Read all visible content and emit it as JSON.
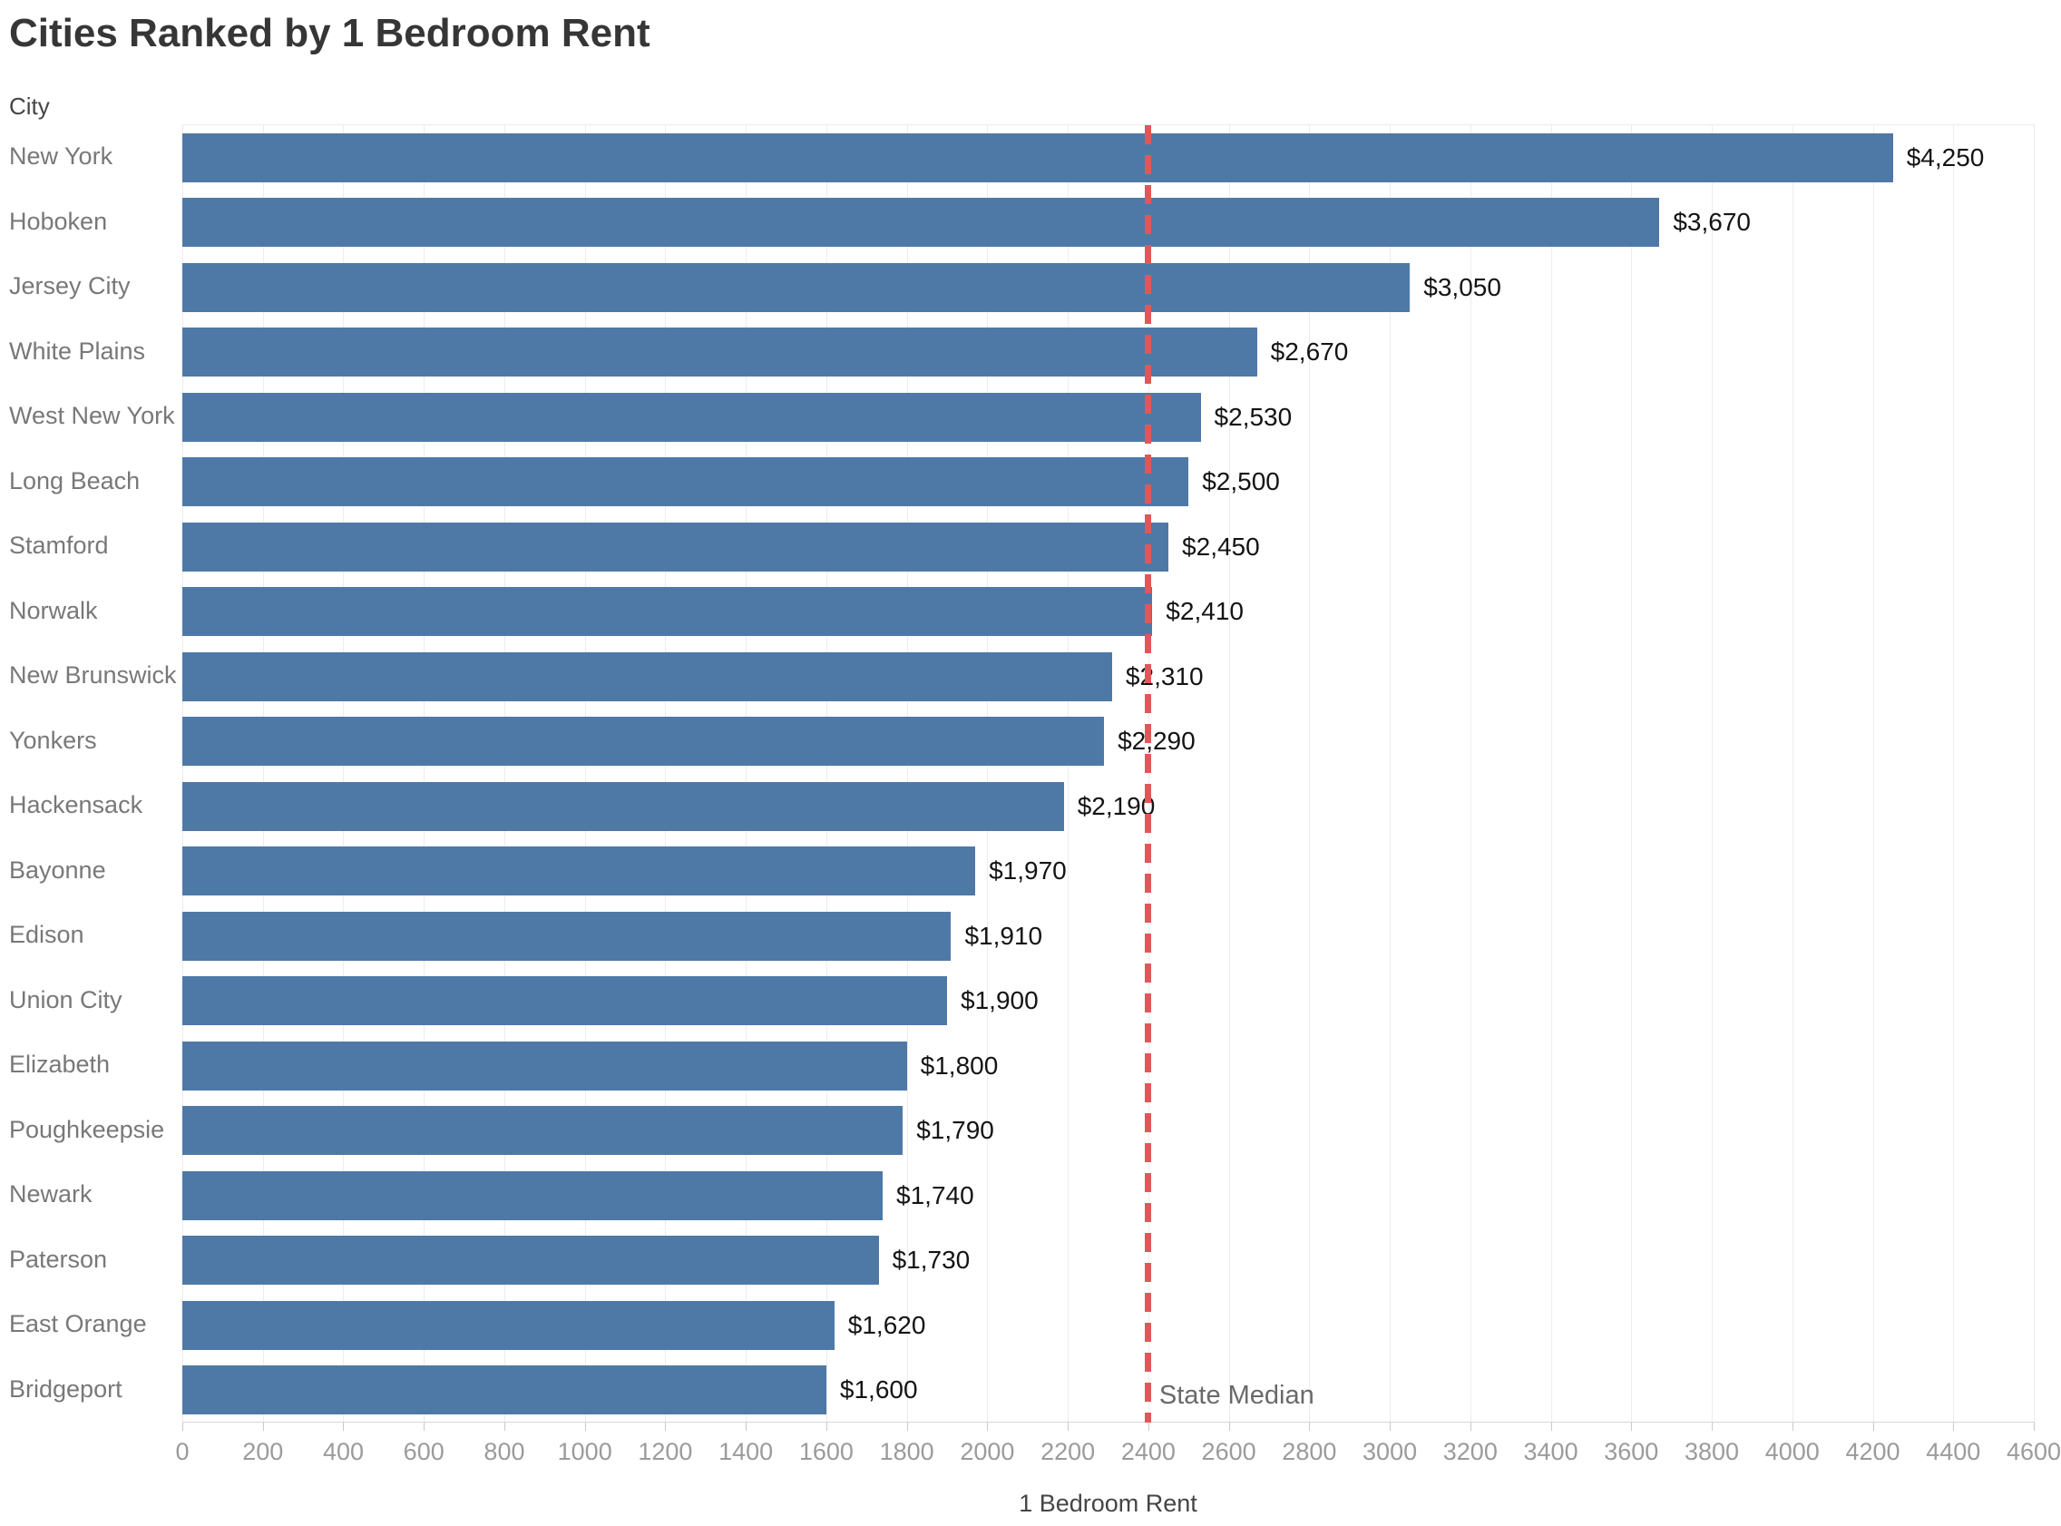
{
  "title": "Cities Ranked by 1 Bedroom Rent",
  "y_axis_header": "City",
  "chart_data": {
    "type": "bar",
    "orientation": "horizontal",
    "title": "Cities Ranked by 1 Bedroom Rent",
    "categories": [
      "New York",
      "Hoboken",
      "Jersey City",
      "White Plains",
      "West New York",
      "Long Beach",
      "Stamford",
      "Norwalk",
      "New Brunswick",
      "Yonkers",
      "Hackensack",
      "Bayonne",
      "Edison",
      "Union City",
      "Elizabeth",
      "Poughkeepsie",
      "Newark",
      "Paterson",
      "East Orange",
      "Bridgeport"
    ],
    "values": [
      4250,
      3670,
      3050,
      2670,
      2530,
      2500,
      2450,
      2410,
      2310,
      2290,
      2190,
      1970,
      1910,
      1900,
      1800,
      1790,
      1740,
      1730,
      1620,
      1600
    ],
    "value_labels": [
      "$4,250",
      "$3,670",
      "$3,050",
      "$2,670",
      "$2,530",
      "$2,500",
      "$2,450",
      "$2,410",
      "$2,310",
      "$2,290",
      "$2,190",
      "$1,970",
      "$1,910",
      "$1,900",
      "$1,800",
      "$1,790",
      "$1,740",
      "$1,730",
      "$1,620",
      "$1,600"
    ],
    "xlabel": "1 Bedroom Rent",
    "ylabel": "City",
    "xlim": [
      0,
      4600
    ],
    "x_ticks": [
      0,
      200,
      400,
      600,
      800,
      1000,
      1200,
      1400,
      1600,
      1800,
      2000,
      2200,
      2400,
      2600,
      2800,
      3000,
      3200,
      3400,
      3600,
      3800,
      4000,
      4200,
      4400,
      4600
    ],
    "grid": true,
    "legend": false,
    "bar_color": "#4e79a7",
    "reference_line": {
      "label": "State Median",
      "value": 2400,
      "style": "dashed",
      "color": "#e15759"
    }
  }
}
